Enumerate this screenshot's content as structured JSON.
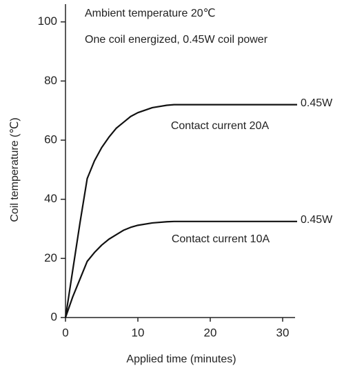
{
  "chart_data": {
    "type": "line",
    "annotations": [
      "Ambient temperature 20℃",
      "One coil energized, 0.45W coil power"
    ],
    "x_label": "Applied time (minutes)",
    "y_label": "Coil temperature (℃)",
    "xlim": [
      0,
      32
    ],
    "xticks": [
      0,
      10,
      20,
      30
    ],
    "ylim": [
      0,
      106
    ],
    "yticks": [
      0,
      20,
      40,
      60,
      80,
      100
    ],
    "series": [
      {
        "name": "Contact current 20A",
        "end_label": "0.45W",
        "color": "#111111",
        "x": [
          0,
          1,
          2,
          3,
          4,
          5,
          6,
          7,
          8,
          9,
          10,
          12,
          14,
          15,
          20,
          32
        ],
        "values": [
          0,
          16,
          32,
          47,
          53,
          57.5,
          61,
          64,
          66,
          68,
          69.3,
          71,
          71.8,
          72,
          72,
          72
        ]
      },
      {
        "name": "Contact current 10A",
        "end_label": "0.45W",
        "color": "#111111",
        "x": [
          0,
          1,
          2,
          3,
          4,
          5,
          6,
          7,
          8,
          9,
          10,
          12,
          14,
          15,
          20,
          32
        ],
        "values": [
          0,
          7,
          13,
          19,
          22,
          24.5,
          26.5,
          28,
          29.5,
          30.5,
          31.2,
          32,
          32.4,
          32.5,
          32.5,
          32.5
        ]
      }
    ]
  }
}
